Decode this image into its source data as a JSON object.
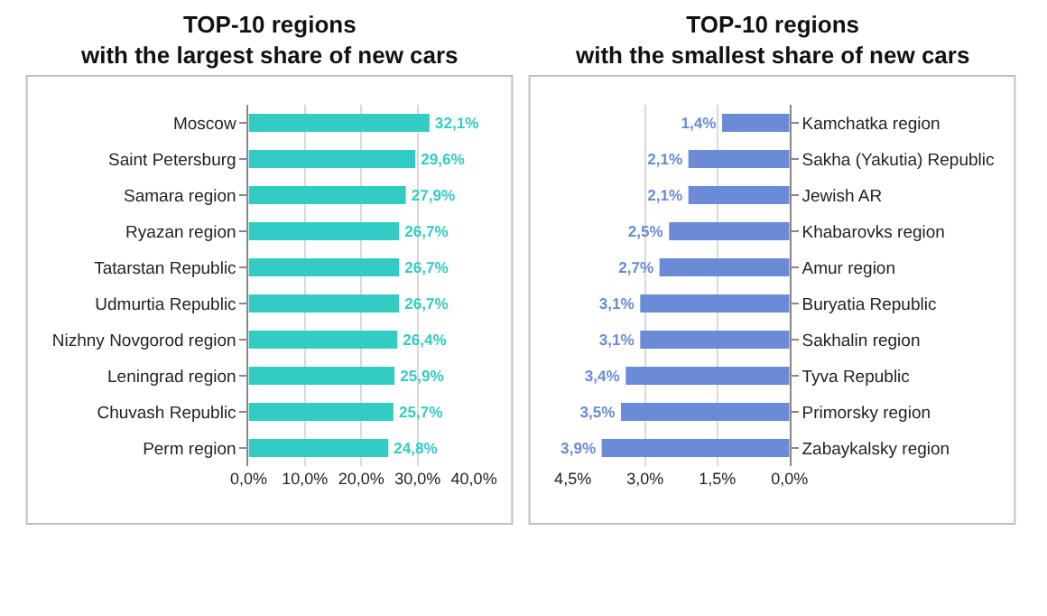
{
  "chart_data": [
    {
      "type": "bar",
      "orientation": "horizontal",
      "title": "TOP-10 regions\nwith the largest share of new cars",
      "categories": [
        "Moscow",
        "Saint Petersburg",
        "Samara region",
        "Ryazan region",
        "Tatarstan Republic",
        "Udmurtia Republic",
        "Nizhny Novgorod region",
        "Leningrad region",
        "Chuvash Republic",
        "Perm region"
      ],
      "values": [
        32.1,
        29.6,
        27.9,
        26.7,
        26.7,
        26.7,
        26.4,
        25.9,
        25.7,
        24.8
      ],
      "value_labels": [
        "32,1%",
        "29,6%",
        "27,9%",
        "26,7%",
        "26,7%",
        "26,7%",
        "26,4%",
        "25,9%",
        "25,7%",
        "24,8%"
      ],
      "color": "#33ccc4",
      "xlim": [
        0,
        40
      ],
      "xticks": [
        {
          "value": 0,
          "label": "0,0%"
        },
        {
          "value": 10,
          "label": "10,0%"
        },
        {
          "value": 20,
          "label": "20,0%"
        },
        {
          "value": 30,
          "label": "30,0%"
        },
        {
          "value": 40,
          "label": "40,0%"
        }
      ],
      "grid": "x"
    },
    {
      "type": "bar",
      "orientation": "horizontal",
      "title": "TOP-10 regions\nwith the smallest share of new cars",
      "categories": [
        "Kamchatka region",
        "Sakha (Yakutia) Republic",
        "Jewish AR",
        "Khabarovks region",
        "Amur region",
        "Buryatia Republic",
        "Sakhalin region",
        "Tyva Republic",
        "Primorsky region",
        "Zabaykalsky region"
      ],
      "values": [
        1.4,
        2.1,
        2.1,
        2.5,
        2.7,
        3.1,
        3.1,
        3.4,
        3.5,
        3.9
      ],
      "value_labels": [
        "1,4%",
        "2,1%",
        "2,1%",
        "2,5%",
        "2,7%",
        "3,1%",
        "3,1%",
        "3,4%",
        "3,5%",
        "3,9%"
      ],
      "color": "#6a8bd6",
      "xlim": [
        4.5,
        0
      ],
      "xticks": [
        {
          "value": 4.5,
          "label": "4,5%"
        },
        {
          "value": 3,
          "label": "3,0%"
        },
        {
          "value": 1.5,
          "label": "1,5%"
        },
        {
          "value": 0,
          "label": "0,0%"
        }
      ],
      "grid": "x"
    }
  ]
}
